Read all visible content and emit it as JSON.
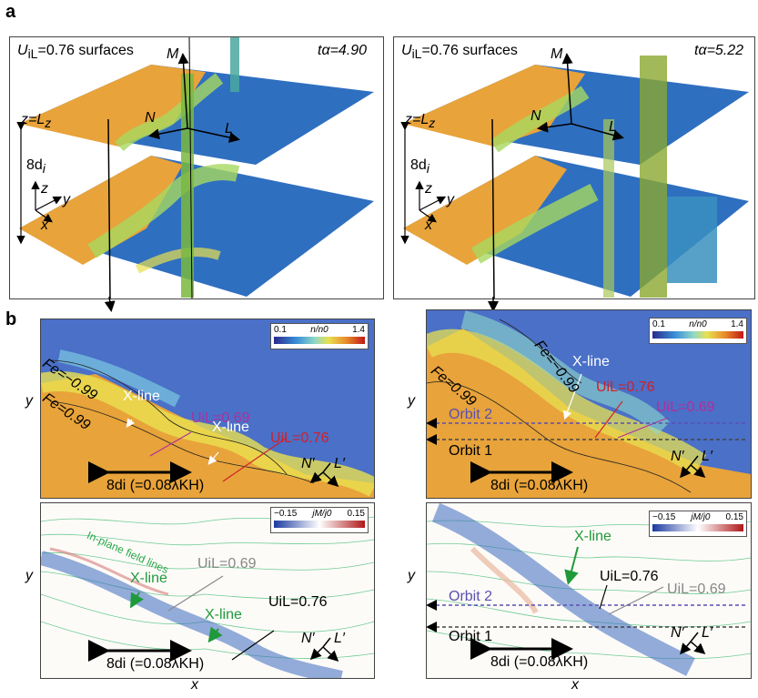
{
  "panel_a": {
    "letter": "a",
    "left": {
      "title": "U_iL=0.76 surfaces",
      "title_main": "U",
      "title_sub": "iL",
      "title_rest": "=0.76 surfaces",
      "time": "tα=4.90"
    },
    "right": {
      "title_main": "U",
      "title_sub": "iL",
      "title_rest": "=0.76 surfaces",
      "time": "tα=5.22"
    },
    "labels": {
      "z_eq": "z=L",
      "z_sub": "z",
      "eight": "8d",
      "eight_sub": "i",
      "axis_x": "x",
      "axis_y": "y",
      "axis_z": "z",
      "M": "M",
      "N": "N",
      "L": "L"
    }
  },
  "panel_b": {
    "letter": "b",
    "colorbar_top": {
      "min": "0.1",
      "label": "n/n0",
      "max": "1.4"
    },
    "colorbar_bottom": {
      "min": "−0.15",
      "label": "jM/j0",
      "max": "0.15"
    },
    "top_left": {
      "fe_upper": "Fe=−0.99",
      "fe_lower": "Fe=0.99",
      "xline1": "X-line",
      "xline2": "X-line",
      "u069": "UiL=0.69",
      "u076": "UiL=0.76",
      "scale": "8di (=0.08λKH)"
    },
    "top_right": {
      "fe_upper": "Fe=−0.99",
      "fe_lower": "Fe=0.99",
      "xline": "X-line",
      "u076": "UiL=0.76",
      "u069": "UiL=0.69",
      "orbit2": "Orbit 2",
      "orbit1": "Orbit 1",
      "scale": "8di (=0.08λKH)"
    },
    "bottom_left": {
      "field_lines": "In-plane field lines",
      "xline1": "X-line",
      "xline2": "X-line",
      "u069": "UiL=0.69",
      "u076": "UiL=0.76",
      "scale": "8di (=0.08λKH)"
    },
    "bottom_right": {
      "xline": "X-line",
      "u076": "UiL=0.76",
      "u069": "UiL=0.69",
      "orbit2": "Orbit 2",
      "orbit1": "Orbit 1",
      "scale": "8di (=0.08λKH)"
    },
    "axis_y": "y",
    "axis_x": "x",
    "nprime": "N′",
    "lprime": "L′"
  },
  "colors": {
    "orange": "#e8a33a",
    "blue": "#2f6fc0",
    "green": "#2aa84a",
    "magenta": "#b0309a",
    "red": "#d0202a",
    "purple": "#5a50b0"
  }
}
